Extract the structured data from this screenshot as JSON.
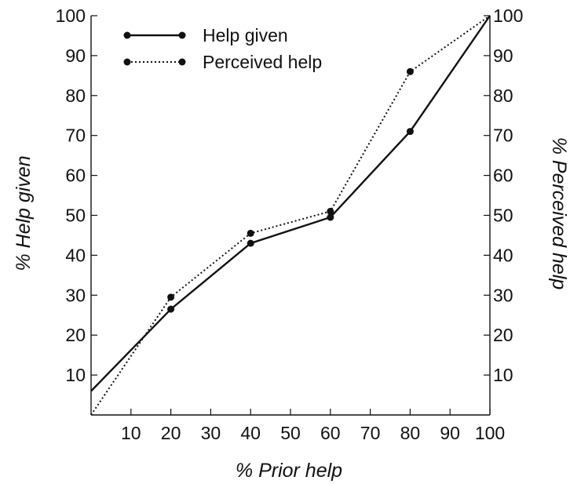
{
  "chart_data": {
    "type": "line",
    "title": "",
    "xlabel": "% Prior help",
    "ylabel": "% Help given",
    "ylabel_right": "% Perceived help",
    "xlim": [
      0,
      100
    ],
    "ylim": [
      0,
      100
    ],
    "x_ticks": [
      "10",
      "20",
      "30",
      "40",
      "50",
      "60",
      "70",
      "80",
      "90",
      "100"
    ],
    "y_ticks_left": [
      "10",
      "20",
      "30",
      "40",
      "50",
      "60",
      "70",
      "80",
      "90",
      "100"
    ],
    "y_ticks_right": [
      "10",
      "20",
      "30",
      "40",
      "50",
      "60",
      "70",
      "80",
      "90",
      "100"
    ],
    "legend_position": "top-left",
    "grid": false,
    "series": [
      {
        "name": "Help given",
        "style": "solid",
        "x": [
          0,
          20,
          40,
          60,
          80,
          100
        ],
        "y": [
          6,
          26.5,
          43,
          49.5,
          71,
          100
        ],
        "markers": [
          false,
          true,
          true,
          true,
          true,
          false
        ]
      },
      {
        "name": "Perceived help",
        "style": "dotted",
        "x": [
          0,
          20,
          40,
          60,
          80,
          100
        ],
        "y": [
          0,
          29.5,
          45.5,
          51,
          86,
          100
        ],
        "markers": [
          false,
          true,
          true,
          true,
          true,
          false
        ]
      }
    ]
  }
}
